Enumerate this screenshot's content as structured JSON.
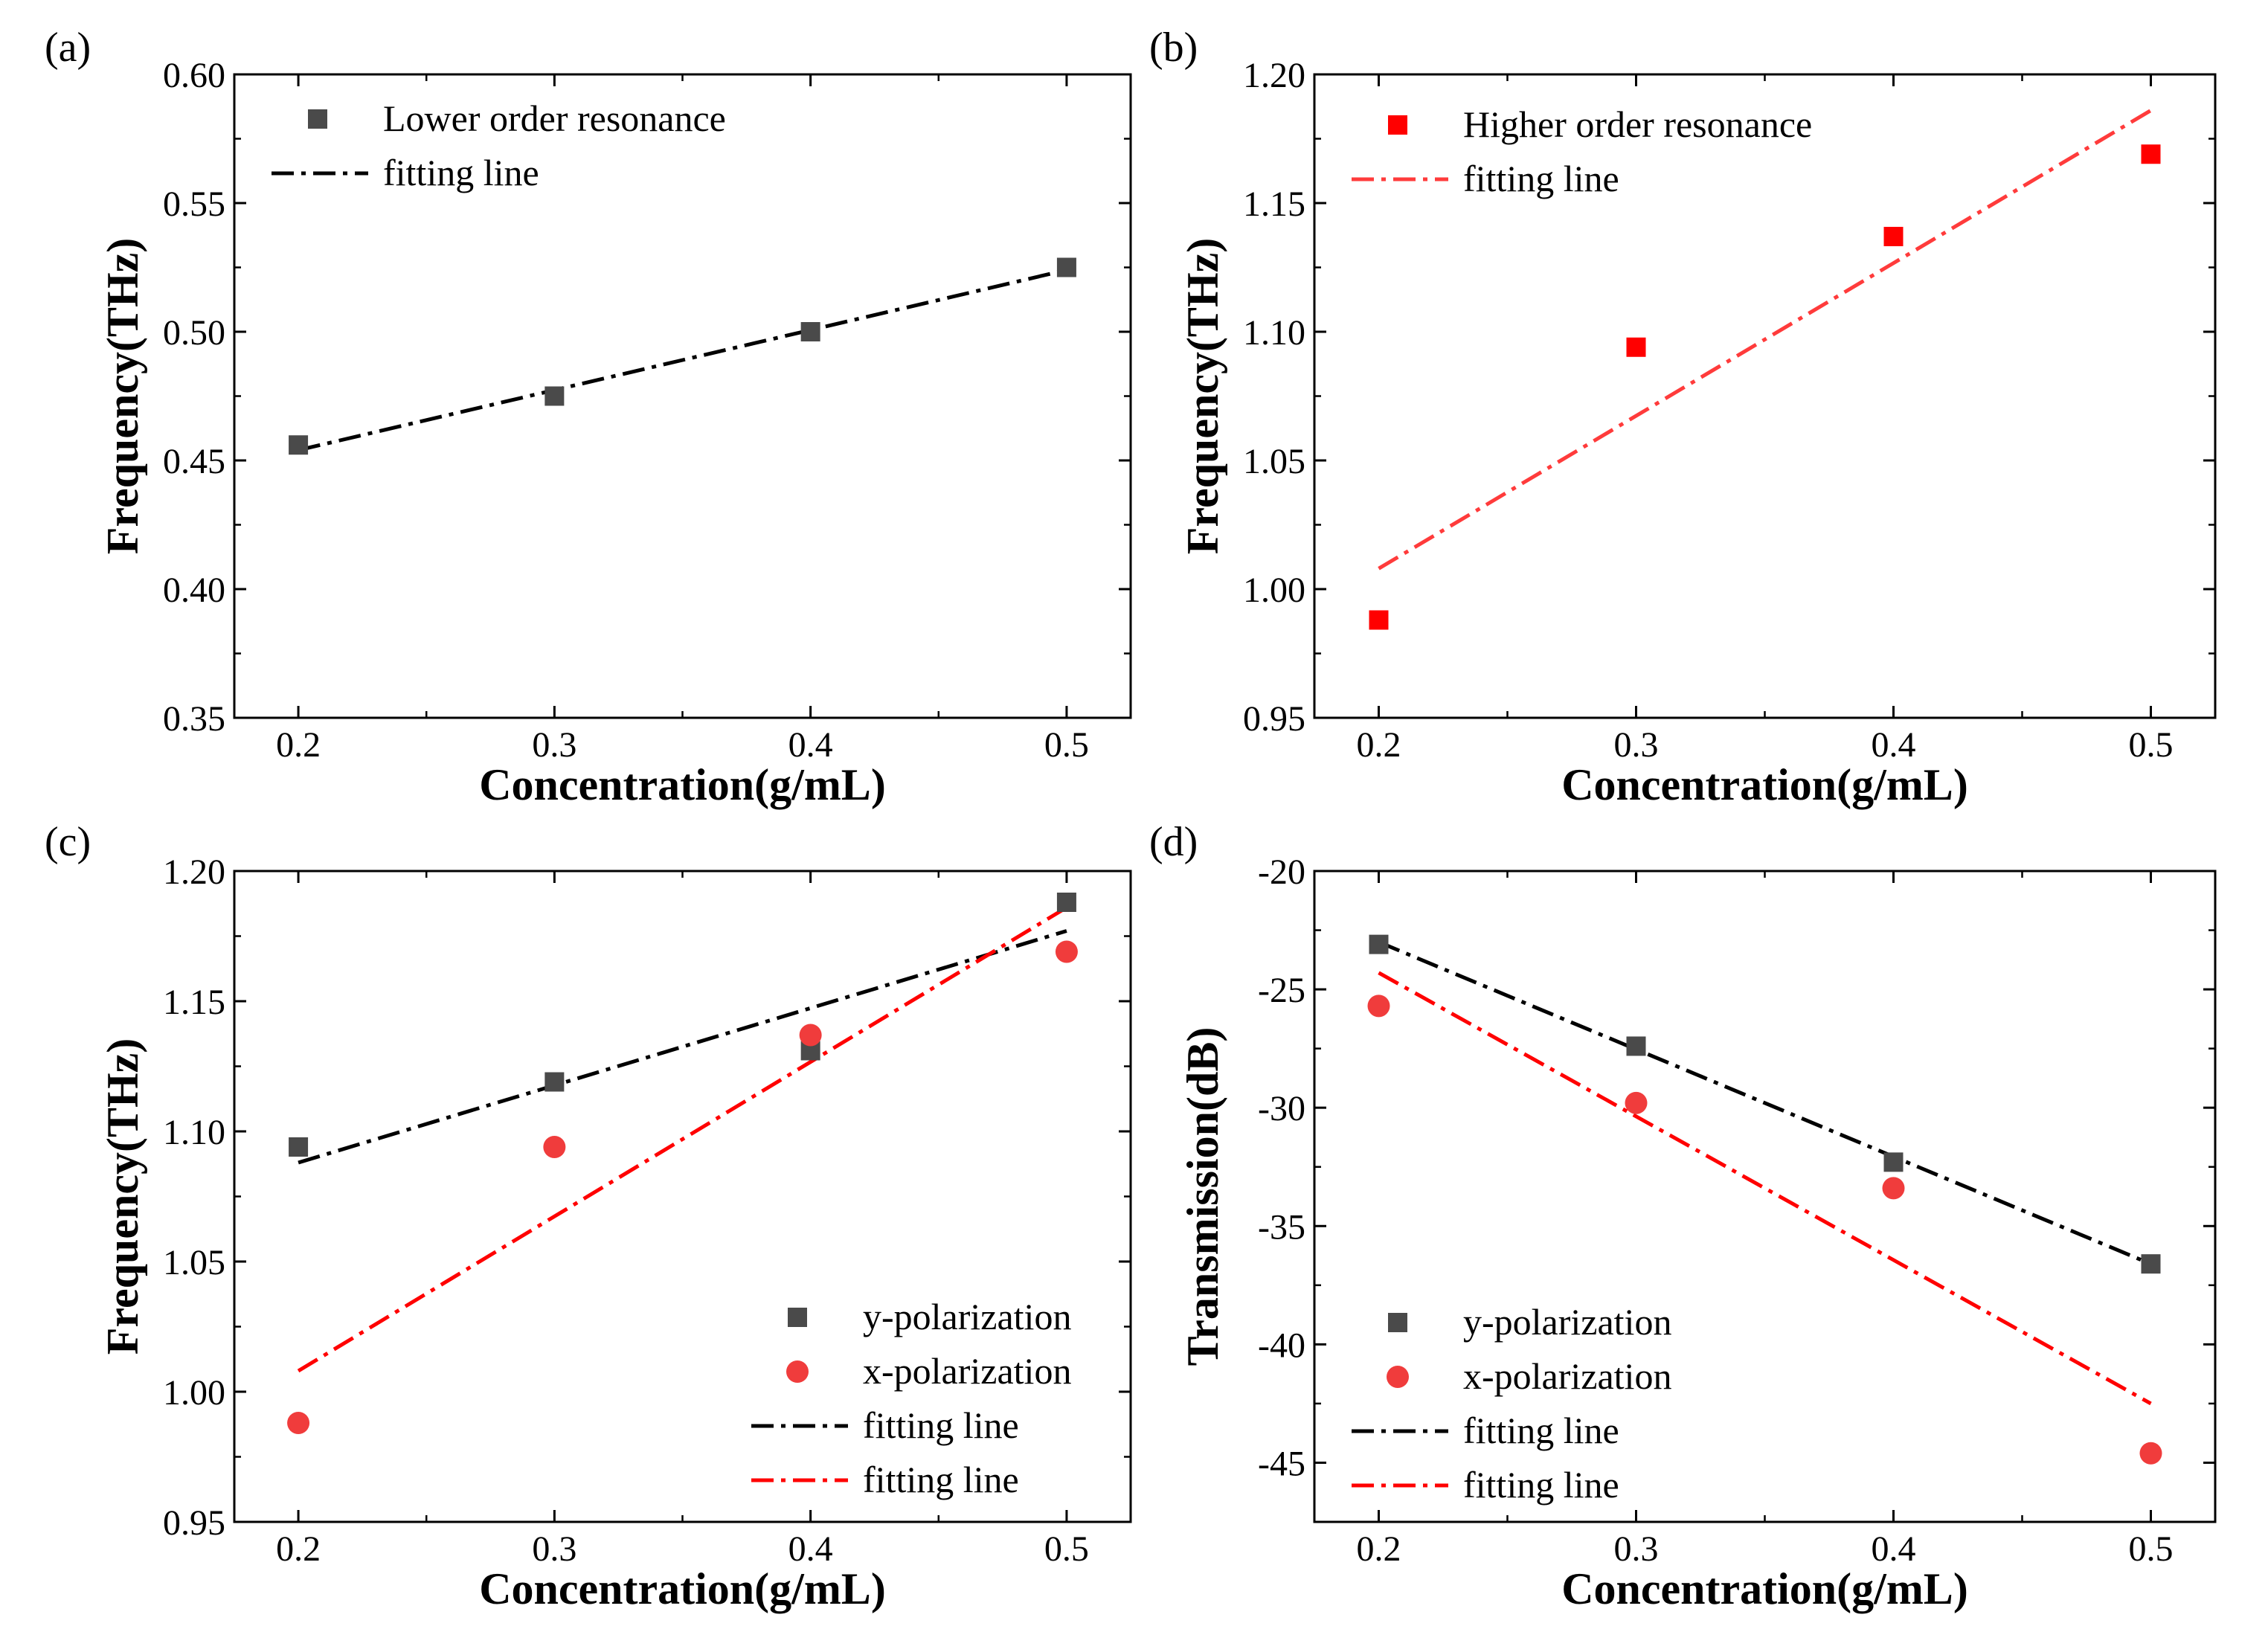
{
  "chart_data": [
    {
      "type": "scatter",
      "panel_label": "(a)",
      "xlabel": "Concentration(g/mL)",
      "ylabel": "Frequency(THz)",
      "xlim": [
        0.175,
        0.525
      ],
      "ylim": [
        0.35,
        0.6
      ],
      "xticks": [
        0.2,
        0.3,
        0.4,
        0.5
      ],
      "xtick_labels": [
        "0.2",
        "0.3",
        "0.4",
        "0.5"
      ],
      "yticks": [
        0.35,
        0.4,
        0.45,
        0.5,
        0.55,
        0.6
      ],
      "ytick_labels": [
        "0.35",
        "0.40",
        "0.45",
        "0.50",
        "0.55",
        "0.60"
      ],
      "legend_position": "top-left",
      "series": [
        {
          "name": "Lower order resonance",
          "kind": "points",
          "marker": "square",
          "color": "#4a4a4a",
          "x": [
            0.2,
            0.3,
            0.4,
            0.5
          ],
          "y": [
            0.456,
            0.475,
            0.5,
            0.525
          ]
        },
        {
          "name": "fitting line",
          "kind": "line",
          "style": "dashdot",
          "color": "#000000",
          "x": [
            0.2,
            0.5
          ],
          "y": [
            0.454,
            0.524
          ]
        }
      ]
    },
    {
      "type": "scatter",
      "panel_label": "(b)",
      "xlabel": "Concentration(g/mL)",
      "ylabel": "Frequency(THz)",
      "xlim": [
        0.175,
        0.525
      ],
      "ylim": [
        0.95,
        1.2
      ],
      "xticks": [
        0.2,
        0.3,
        0.4,
        0.5
      ],
      "xtick_labels": [
        "0.2",
        "0.3",
        "0.4",
        "0.5"
      ],
      "yticks": [
        0.95,
        1.0,
        1.05,
        1.1,
        1.15,
        1.2
      ],
      "ytick_labels": [
        "0.95",
        "1.00",
        "1.05",
        "1.10",
        "1.15",
        "1.20"
      ],
      "legend_position": "top-left",
      "series": [
        {
          "name": "Higher order resonance",
          "kind": "points",
          "marker": "square",
          "color": "#ff0000",
          "x": [
            0.2,
            0.3,
            0.4,
            0.5
          ],
          "y": [
            0.988,
            1.094,
            1.137,
            1.169
          ]
        },
        {
          "name": "fitting line",
          "kind": "line",
          "style": "dashdot",
          "color": "#ff3b3b",
          "x": [
            0.2,
            0.5
          ],
          "y": [
            1.008,
            1.186
          ]
        }
      ]
    },
    {
      "type": "scatter",
      "panel_label": "(c)",
      "xlabel": "Concentration(g/mL)",
      "ylabel": "Frequency(THz)",
      "xlim": [
        0.175,
        0.525
      ],
      "ylim": [
        0.95,
        1.2
      ],
      "xticks": [
        0.2,
        0.3,
        0.4,
        0.5
      ],
      "xtick_labels": [
        "0.2",
        "0.3",
        "0.4",
        "0.5"
      ],
      "yticks": [
        0.95,
        1.0,
        1.05,
        1.1,
        1.15,
        1.2
      ],
      "ytick_labels": [
        "0.95",
        "1.00",
        "1.05",
        "1.10",
        "1.15",
        "1.20"
      ],
      "legend_position": "bottom-right",
      "series": [
        {
          "name": "y-polarization",
          "kind": "points",
          "marker": "square",
          "color": "#4a4a4a",
          "x": [
            0.2,
            0.3,
            0.4,
            0.5
          ],
          "y": [
            1.094,
            1.119,
            1.131,
            1.188
          ]
        },
        {
          "name": "x-polarization",
          "kind": "points",
          "marker": "circle",
          "color": "#f03c3c",
          "x": [
            0.2,
            0.3,
            0.4,
            0.5
          ],
          "y": [
            0.988,
            1.094,
            1.137,
            1.169
          ]
        },
        {
          "name": "fitting line",
          "kind": "line",
          "style": "dashdot",
          "color": "#000000",
          "x": [
            0.2,
            0.5
          ],
          "y": [
            1.088,
            1.177
          ]
        },
        {
          "name": "fitting line",
          "kind": "line",
          "style": "dashdot",
          "color": "#ff0000",
          "x": [
            0.2,
            0.5
          ],
          "y": [
            1.008,
            1.186
          ]
        }
      ]
    },
    {
      "type": "scatter",
      "panel_label": "(d)",
      "xlabel": "Concentration(g/mL)",
      "ylabel": "Transmission(dB)",
      "xlim": [
        0.175,
        0.525
      ],
      "ylim": [
        -47.5,
        -20
      ],
      "xticks": [
        0.2,
        0.3,
        0.4,
        0.5
      ],
      "xtick_labels": [
        "0.2",
        "0.3",
        "0.4",
        "0.5"
      ],
      "yticks": [
        -45,
        -40,
        -35,
        -30,
        -25,
        -20
      ],
      "ytick_labels": [
        "-45",
        "-40",
        "-35",
        "-30",
        "-25",
        "-20"
      ],
      "legend_position": "bottom-left",
      "series": [
        {
          "name": "y-polarization",
          "kind": "points",
          "marker": "square",
          "color": "#4a4a4a",
          "x": [
            0.2,
            0.3,
            0.4,
            0.5
          ],
          "y": [
            -23.1,
            -27.4,
            -32.3,
            -36.6
          ]
        },
        {
          "name": "x-polarization",
          "kind": "points",
          "marker": "circle",
          "color": "#f03c3c",
          "x": [
            0.2,
            0.3,
            0.4,
            0.5
          ],
          "y": [
            -25.7,
            -29.8,
            -33.4,
            -44.6
          ]
        },
        {
          "name": "fitting line",
          "kind": "line",
          "style": "dashdot",
          "color": "#000000",
          "x": [
            0.2,
            0.5
          ],
          "y": [
            -23.0,
            -36.6
          ]
        },
        {
          "name": "fitting line",
          "kind": "line",
          "style": "dashdot",
          "color": "#ff0000",
          "x": [
            0.2,
            0.5
          ],
          "y": [
            -24.3,
            -42.5
          ]
        }
      ]
    }
  ]
}
